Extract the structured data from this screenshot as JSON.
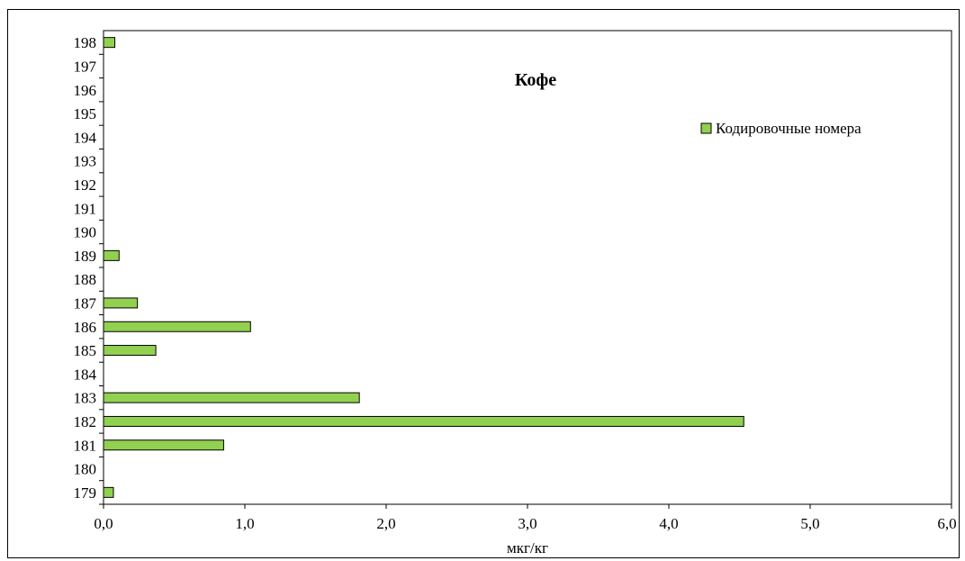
{
  "chart_data": {
    "type": "bar",
    "orientation": "horizontal",
    "title": "Кофе",
    "xlabel": "мкг/кг",
    "ylabel": "",
    "xlim": [
      0,
      6
    ],
    "x_ticks": [
      "0,0",
      "1,0",
      "2,0",
      "3,0",
      "4,0",
      "5,0",
      "6,0"
    ],
    "categories": [
      "179",
      "180",
      "181",
      "182",
      "183",
      "184",
      "185",
      "186",
      "187",
      "188",
      "189",
      "190",
      "191",
      "192",
      "193",
      "194",
      "195",
      "196",
      "197",
      "198"
    ],
    "series": [
      {
        "name": "Кодировочные номера",
        "color": "#92d050",
        "values": [
          0.07,
          0,
          0.85,
          4.53,
          1.81,
          0,
          0.37,
          1.04,
          0.24,
          0,
          0.11,
          0,
          0,
          0,
          0,
          0,
          0,
          0,
          0,
          0.08
        ]
      }
    ],
    "grid": false,
    "legend_position": "top-right"
  }
}
